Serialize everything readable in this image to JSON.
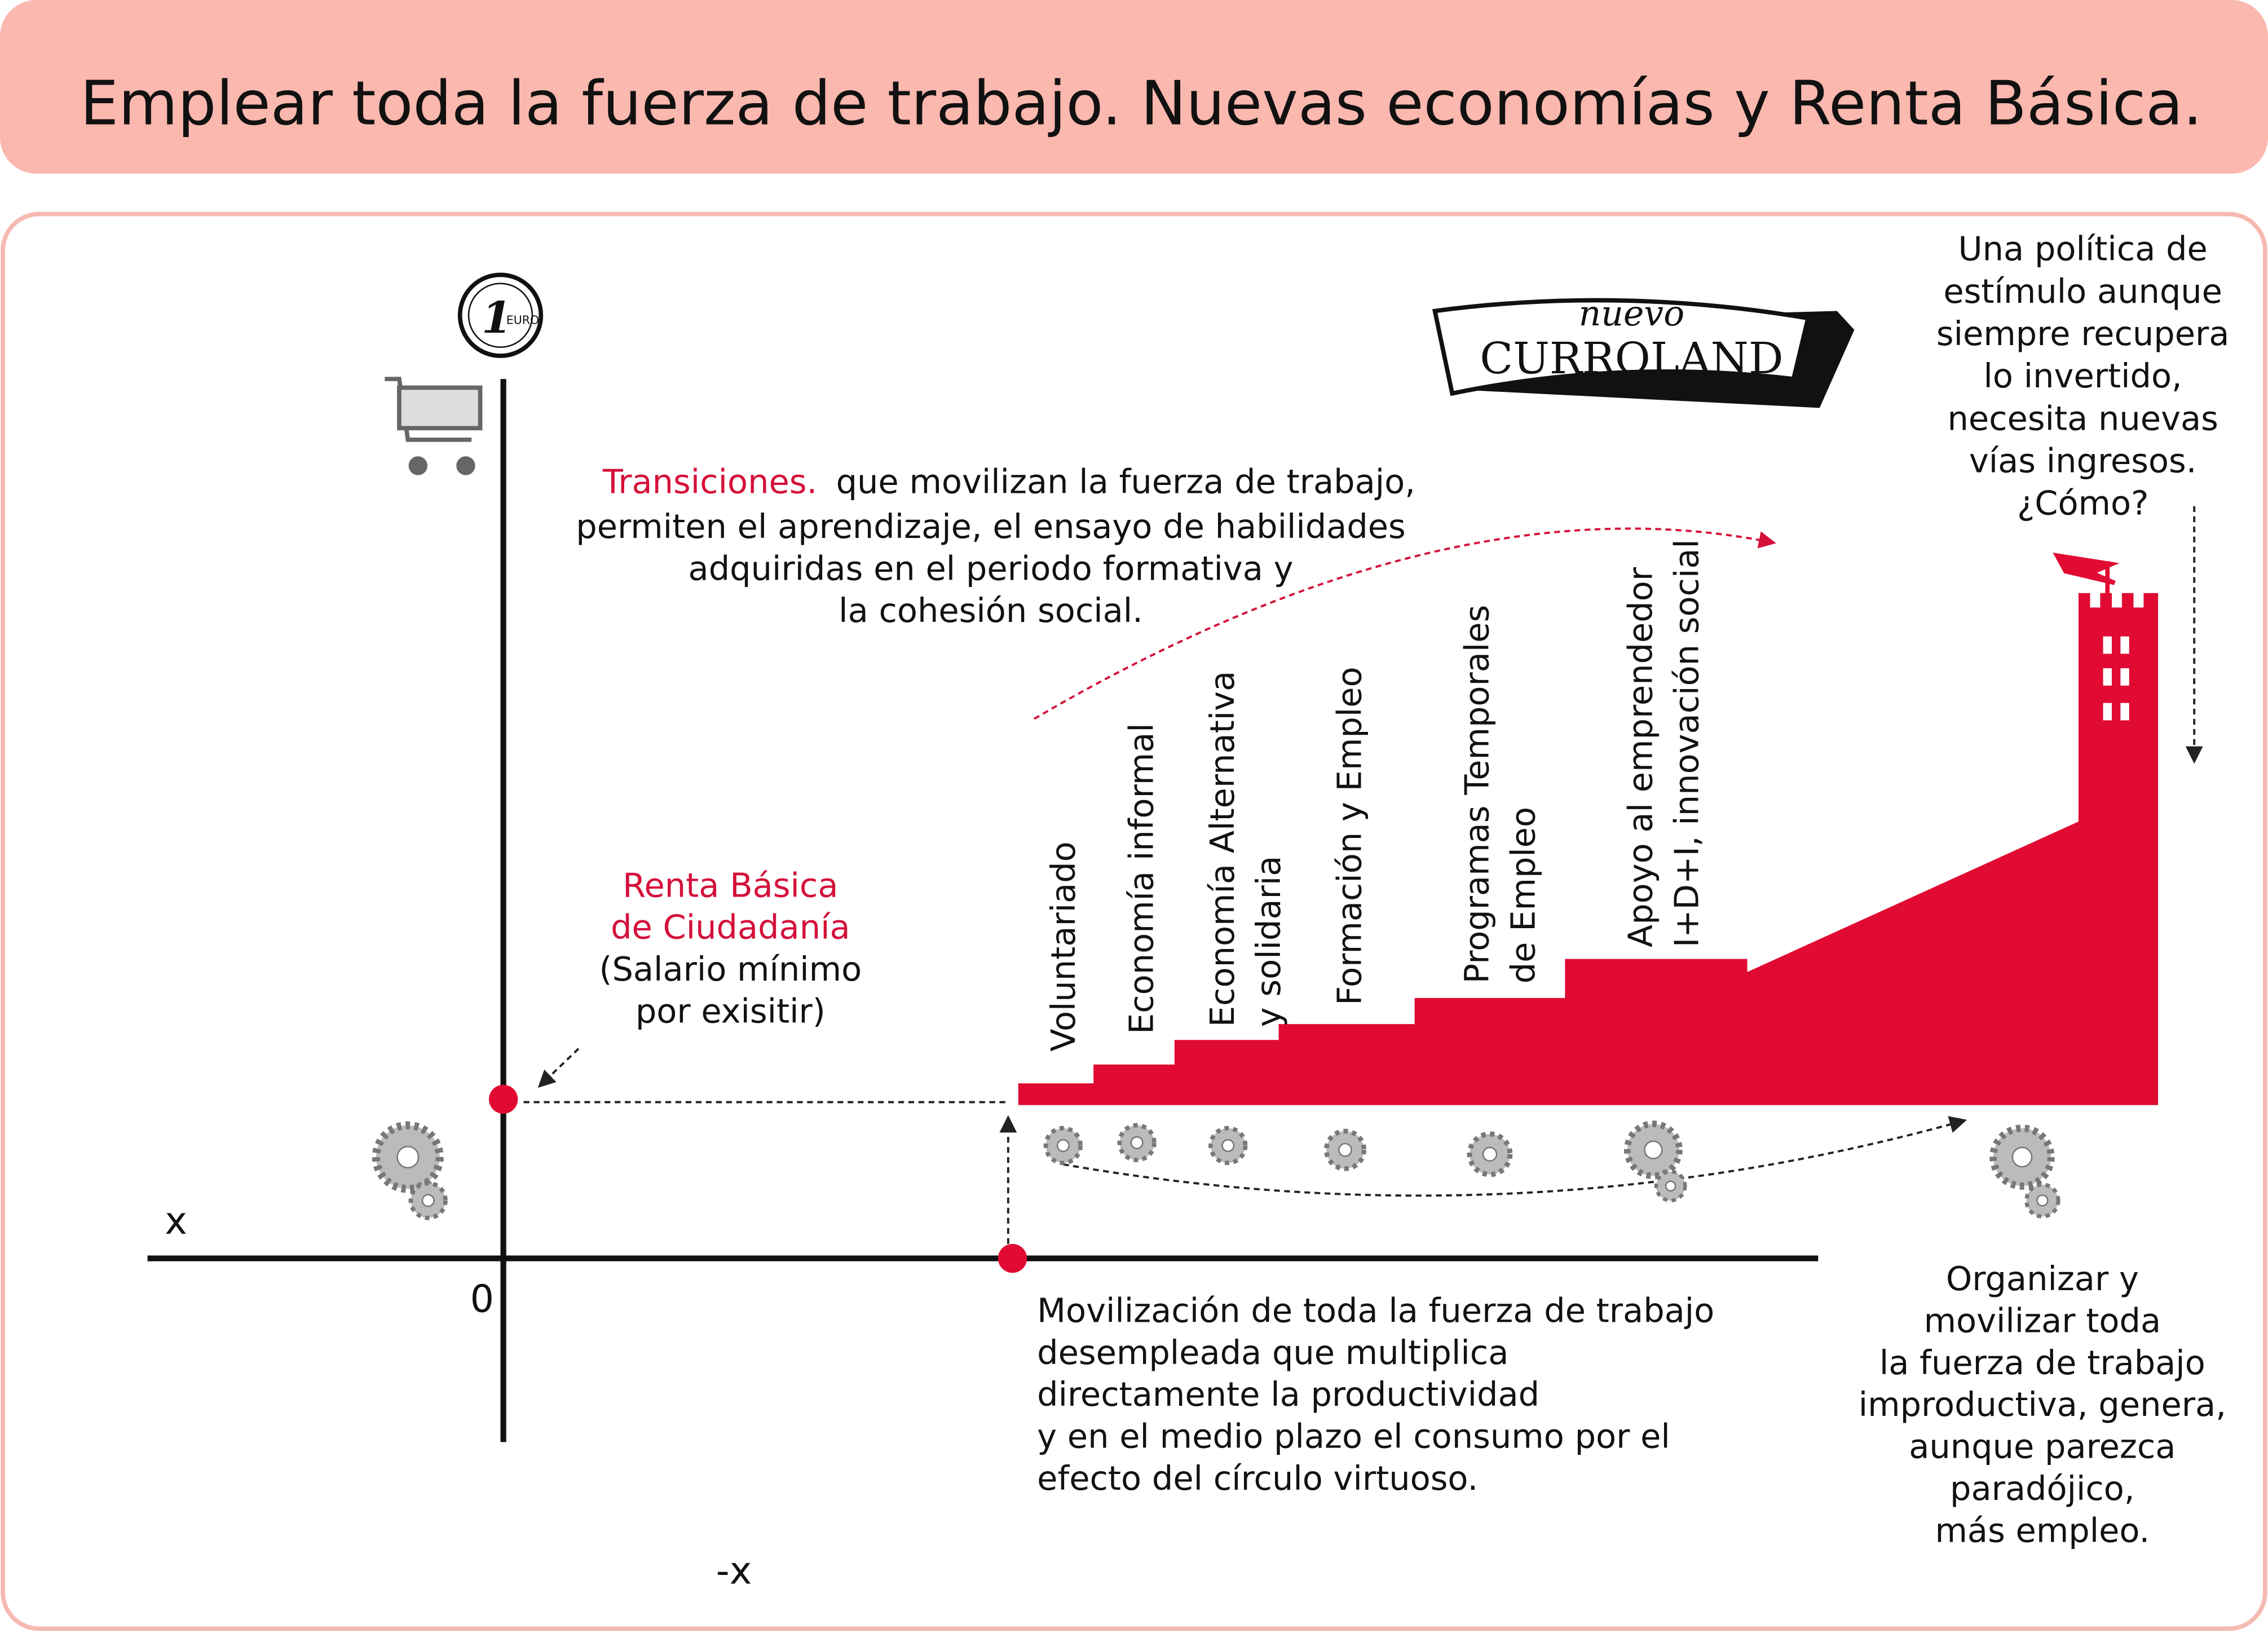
{
  "header": {
    "title": "Emplear toda la fuerza de trabajo. Nuevas economías y Renta Básica."
  },
  "logo": {
    "top": "nuevo",
    "main": "CURROLAND"
  },
  "coin": {
    "value": "1",
    "unit": "EURO"
  },
  "axes": {
    "x": "x",
    "origin": "0",
    "neg_x": "-x"
  },
  "transitions": {
    "highlight": "Transiciones.",
    "lines": [
      "que movilizan la fuerza de trabajo,",
      "permiten el aprendizaje, el ensayo  de habilidades",
      "adquiridas en el periodo formativa y",
      "la cohesión social."
    ]
  },
  "renta": {
    "title": [
      "Renta Básica",
      "de Ciudadanía"
    ],
    "note": [
      "(Salario mínimo",
      "por exisitir)"
    ]
  },
  "steps": [
    {
      "lines": [
        "Voluntariado"
      ]
    },
    {
      "lines": [
        "Economía informal"
      ]
    },
    {
      "lines": [
        "Economía Alternativa",
        "y solidaria"
      ]
    },
    {
      "lines": [
        "Formación y Empleo"
      ]
    },
    {
      "lines": [
        "Programas Temporales",
        "de Empleo"
      ]
    },
    {
      "lines": [
        "Apoyo al emprendedor",
        "I+D+I, innovación social"
      ]
    }
  ],
  "question": {
    "lines": [
      "Una política de",
      "estímulo aunque",
      "siempre recupera",
      "lo invertido,",
      "necesita nuevas",
      "vías ingresos.",
      "¿Cómo?"
    ]
  },
  "movilizacion": {
    "lines": [
      "Movilización de toda la fuerza de trabajo",
      "desempleada que multiplica",
      "directamente la productividad",
      "y en el medio plazo el consumo por el",
      "efecto del círculo virtuoso."
    ]
  },
  "organizar": {
    "lines": [
      "Organizar y",
      "movilizar toda",
      "la fuerza de trabajo",
      "improductiva, genera,",
      "aunque parezca",
      "paradójico,",
      "más empleo."
    ]
  }
}
